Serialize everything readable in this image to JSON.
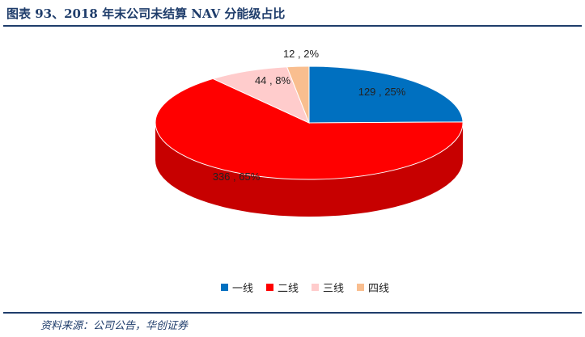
{
  "header": {
    "title": "图表 93、2018 年末公司未结算 NAV 分能级占比"
  },
  "footer": {
    "source": "资料来源：公司公告，华创证券"
  },
  "chart_data": {
    "type": "pie",
    "style": "3d",
    "title": "",
    "categories": [
      "一线",
      "二线",
      "三线",
      "四线"
    ],
    "values": [
      129,
      336,
      44,
      12
    ],
    "percentages": [
      25,
      65,
      8,
      2
    ],
    "data_labels": [
      "129 , 25%",
      "336 , 65%",
      "44 , 8%",
      "12 , 2%"
    ],
    "colors": [
      "#0070c0",
      "#ff0000",
      "#ffcccc",
      "#f9be8f"
    ],
    "legend_placement": "bottom"
  }
}
